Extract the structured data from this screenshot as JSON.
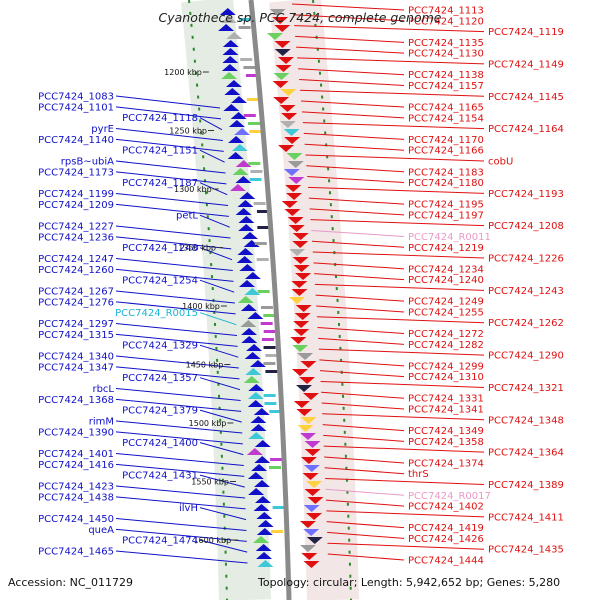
{
  "title": "Cyanothece sp. PCC 7424, complete genome",
  "footer": {
    "accession": "Accession: NC_011729",
    "summary": "Topology: circular; Length: 5,942,652 bp; Genes: 5,280"
  },
  "colors": {
    "left": "#1010c8",
    "right": "#e01010",
    "rna_left": "#1ab4d2",
    "rna_right": "#e89ac8",
    "backbone": "#8a8a8a",
    "scale_tick": "#2a8a2a"
  },
  "scale_marks": [
    "1200 kbp",
    "1250 kbp",
    "1300 kbp",
    "1350 kbp",
    "1400 kbp",
    "1450 kbp",
    "1500 kbp",
    "1550 kbp",
    "1600 kbp"
  ],
  "left_labels": [
    {
      "text": "PCC7424_1083",
      "kind": "gene"
    },
    {
      "text": "PCC7424_1101",
      "kind": "gene"
    },
    {
      "text": "PCC7424_1118",
      "kind": "gene"
    },
    {
      "text": "pyrE",
      "kind": "gene"
    },
    {
      "text": "PCC7424_1140",
      "kind": "gene"
    },
    {
      "text": "PCC7424_1151",
      "kind": "gene"
    },
    {
      "text": "rpsB~ubiA",
      "kind": "gene"
    },
    {
      "text": "PCC7424_1173",
      "kind": "gene"
    },
    {
      "text": "PCC7424_1187",
      "kind": "gene"
    },
    {
      "text": "PCC7424_1199",
      "kind": "gene"
    },
    {
      "text": "PCC7424_1209",
      "kind": "gene"
    },
    {
      "text": "petL",
      "kind": "gene"
    },
    {
      "text": "PCC7424_1227",
      "kind": "gene"
    },
    {
      "text": "PCC7424_1236",
      "kind": "gene"
    },
    {
      "text": "PCC7424_1248",
      "kind": "gene"
    },
    {
      "text": "PCC7424_1247",
      "kind": "gene"
    },
    {
      "text": "PCC7424_1260",
      "kind": "gene"
    },
    {
      "text": "PCC7424_1254",
      "kind": "gene"
    },
    {
      "text": "PCC7424_1267",
      "kind": "gene"
    },
    {
      "text": "PCC7424_1276",
      "kind": "gene"
    },
    {
      "text": "PCC7424_R0015",
      "kind": "rna"
    },
    {
      "text": "PCC7424_1297",
      "kind": "gene"
    },
    {
      "text": "PCC7424_1315",
      "kind": "gene"
    },
    {
      "text": "PCC7424_1329",
      "kind": "gene"
    },
    {
      "text": "PCC7424_1340",
      "kind": "gene"
    },
    {
      "text": "PCC7424_1347",
      "kind": "gene"
    },
    {
      "text": "PCC7424_1357",
      "kind": "gene"
    },
    {
      "text": "rbcL",
      "kind": "gene"
    },
    {
      "text": "PCC7424_1368",
      "kind": "gene"
    },
    {
      "text": "PCC7424_1379",
      "kind": "gene"
    },
    {
      "text": "rimM",
      "kind": "gene"
    },
    {
      "text": "PCC7424_1390",
      "kind": "gene"
    },
    {
      "text": "PCC7424_1400",
      "kind": "gene"
    },
    {
      "text": "PCC7424_1401",
      "kind": "gene"
    },
    {
      "text": "PCC7424_1416",
      "kind": "gene"
    },
    {
      "text": "PCC7424_1431",
      "kind": "gene"
    },
    {
      "text": "PCC7424_1423",
      "kind": "gene"
    },
    {
      "text": "PCC7424_1438",
      "kind": "gene"
    },
    {
      "text": "ilvH",
      "kind": "gene"
    },
    {
      "text": "PCC7424_1450",
      "kind": "gene"
    },
    {
      "text": "queA",
      "kind": "gene"
    },
    {
      "text": "PCC7424_1474",
      "kind": "gene"
    },
    {
      "text": "PCC7424_1465",
      "kind": "gene"
    }
  ],
  "right_labels": [
    {
      "text": "PCC7424_1113",
      "kind": "gene"
    },
    {
      "text": "PCC7424_1120",
      "kind": "gene"
    },
    {
      "text": "PCC7424_1119",
      "kind": "gene"
    },
    {
      "text": "PCC7424_1135",
      "kind": "gene"
    },
    {
      "text": "PCC7424_1130",
      "kind": "gene"
    },
    {
      "text": "PCC7424_1149",
      "kind": "gene"
    },
    {
      "text": "PCC7424_1138",
      "kind": "gene"
    },
    {
      "text": "PCC7424_1157",
      "kind": "gene"
    },
    {
      "text": "PCC7424_1145",
      "kind": "gene"
    },
    {
      "text": "PCC7424_1165",
      "kind": "gene"
    },
    {
      "text": "PCC7424_1154",
      "kind": "gene"
    },
    {
      "text": "PCC7424_1164",
      "kind": "gene"
    },
    {
      "text": "PCC7424_1170",
      "kind": "gene"
    },
    {
      "text": "PCC7424_1166",
      "kind": "gene"
    },
    {
      "text": "cobU",
      "kind": "gene"
    },
    {
      "text": "PCC7424_1183",
      "kind": "gene"
    },
    {
      "text": "PCC7424_1180",
      "kind": "gene"
    },
    {
      "text": "PCC7424_1193",
      "kind": "gene"
    },
    {
      "text": "PCC7424_1195",
      "kind": "gene"
    },
    {
      "text": "PCC7424_1197",
      "kind": "gene"
    },
    {
      "text": "PCC7424_1208",
      "kind": "gene"
    },
    {
      "text": "PCC7424_R0011",
      "kind": "rna"
    },
    {
      "text": "PCC7424_1219",
      "kind": "gene"
    },
    {
      "text": "PCC7424_1226",
      "kind": "gene"
    },
    {
      "text": "PCC7424_1234",
      "kind": "gene"
    },
    {
      "text": "PCC7424_1240",
      "kind": "gene"
    },
    {
      "text": "PCC7424_1243",
      "kind": "gene"
    },
    {
      "text": "PCC7424_1249",
      "kind": "gene"
    },
    {
      "text": "PCC7424_1255",
      "kind": "gene"
    },
    {
      "text": "PCC7424_1262",
      "kind": "gene"
    },
    {
      "text": "PCC7424_1272",
      "kind": "gene"
    },
    {
      "text": "PCC7424_1282",
      "kind": "gene"
    },
    {
      "text": "PCC7424_1290",
      "kind": "gene"
    },
    {
      "text": "PCC7424_1299",
      "kind": "gene"
    },
    {
      "text": "PCC7424_1310",
      "kind": "gene"
    },
    {
      "text": "PCC7424_1321",
      "kind": "gene"
    },
    {
      "text": "PCC7424_1331",
      "kind": "gene"
    },
    {
      "text": "PCC7424_1341",
      "kind": "gene"
    },
    {
      "text": "PCC7424_1348",
      "kind": "gene"
    },
    {
      "text": "PCC7424_1349",
      "kind": "gene"
    },
    {
      "text": "PCC7424_1358",
      "kind": "gene"
    },
    {
      "text": "PCC7424_1364",
      "kind": "gene"
    },
    {
      "text": "PCC7424_1374",
      "kind": "gene"
    },
    {
      "text": "thrS",
      "kind": "gene"
    },
    {
      "text": "PCC7424_1389",
      "kind": "gene"
    },
    {
      "text": "PCC7424_R0017",
      "kind": "rna"
    },
    {
      "text": "PCC7424_1402",
      "kind": "gene"
    },
    {
      "text": "PCC7424_1411",
      "kind": "gene"
    },
    {
      "text": "PCC7424_1419",
      "kind": "gene"
    },
    {
      "text": "PCC7424_1426",
      "kind": "gene"
    },
    {
      "text": "PCC7424_1435",
      "kind": "gene"
    },
    {
      "text": "PCC7424_1444",
      "kind": "gene"
    }
  ]
}
